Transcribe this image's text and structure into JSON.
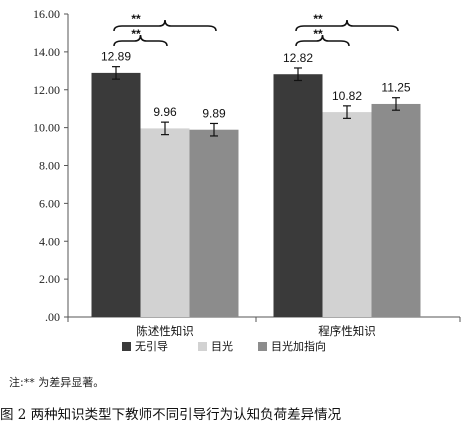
{
  "chart_data": {
    "type": "bar",
    "categories": [
      "陈述性知识",
      "程序性知识"
    ],
    "series": [
      {
        "name": "无引导",
        "values": [
          12.89,
          12.82
        ],
        "errors": [
          0.33,
          0.33
        ],
        "color": "#3a3a3a"
      },
      {
        "name": "目光",
        "values": [
          9.96,
          10.82
        ],
        "errors": [
          0.33,
          0.33
        ],
        "color": "#d2d2d2"
      },
      {
        "name": "目光加指向",
        "values": [
          9.89,
          11.25
        ],
        "errors": [
          0.33,
          0.33
        ],
        "color": "#8c8c8c"
      }
    ],
    "data_labels": [
      [
        "12.89",
        "12.82"
      ],
      [
        "9.96",
        "10.82"
      ],
      [
        "9.89",
        "11.25"
      ]
    ],
    "ylim": [
      0,
      16
    ],
    "yticks": [
      ".00",
      "2.00",
      "4.00",
      "6.00",
      "8.00",
      "10.00",
      "12.00",
      "14.00",
      "16.00"
    ],
    "significance": [
      {
        "category": 0,
        "from": 0,
        "to": 1,
        "label": "**"
      },
      {
        "category": 0,
        "from": 0,
        "to": 2,
        "label": "**"
      },
      {
        "category": 1,
        "from": 0,
        "to": 1,
        "label": "**"
      },
      {
        "category": 1,
        "from": 0,
        "to": 2,
        "label": "**"
      }
    ],
    "legend_position": "bottom",
    "grid": false,
    "title": "",
    "xlabel": "",
    "ylabel": ""
  },
  "note": "注:** 为差异显著。",
  "caption": "图 2  两种知识类型下教师不同引导行为认知负荷差异情况"
}
